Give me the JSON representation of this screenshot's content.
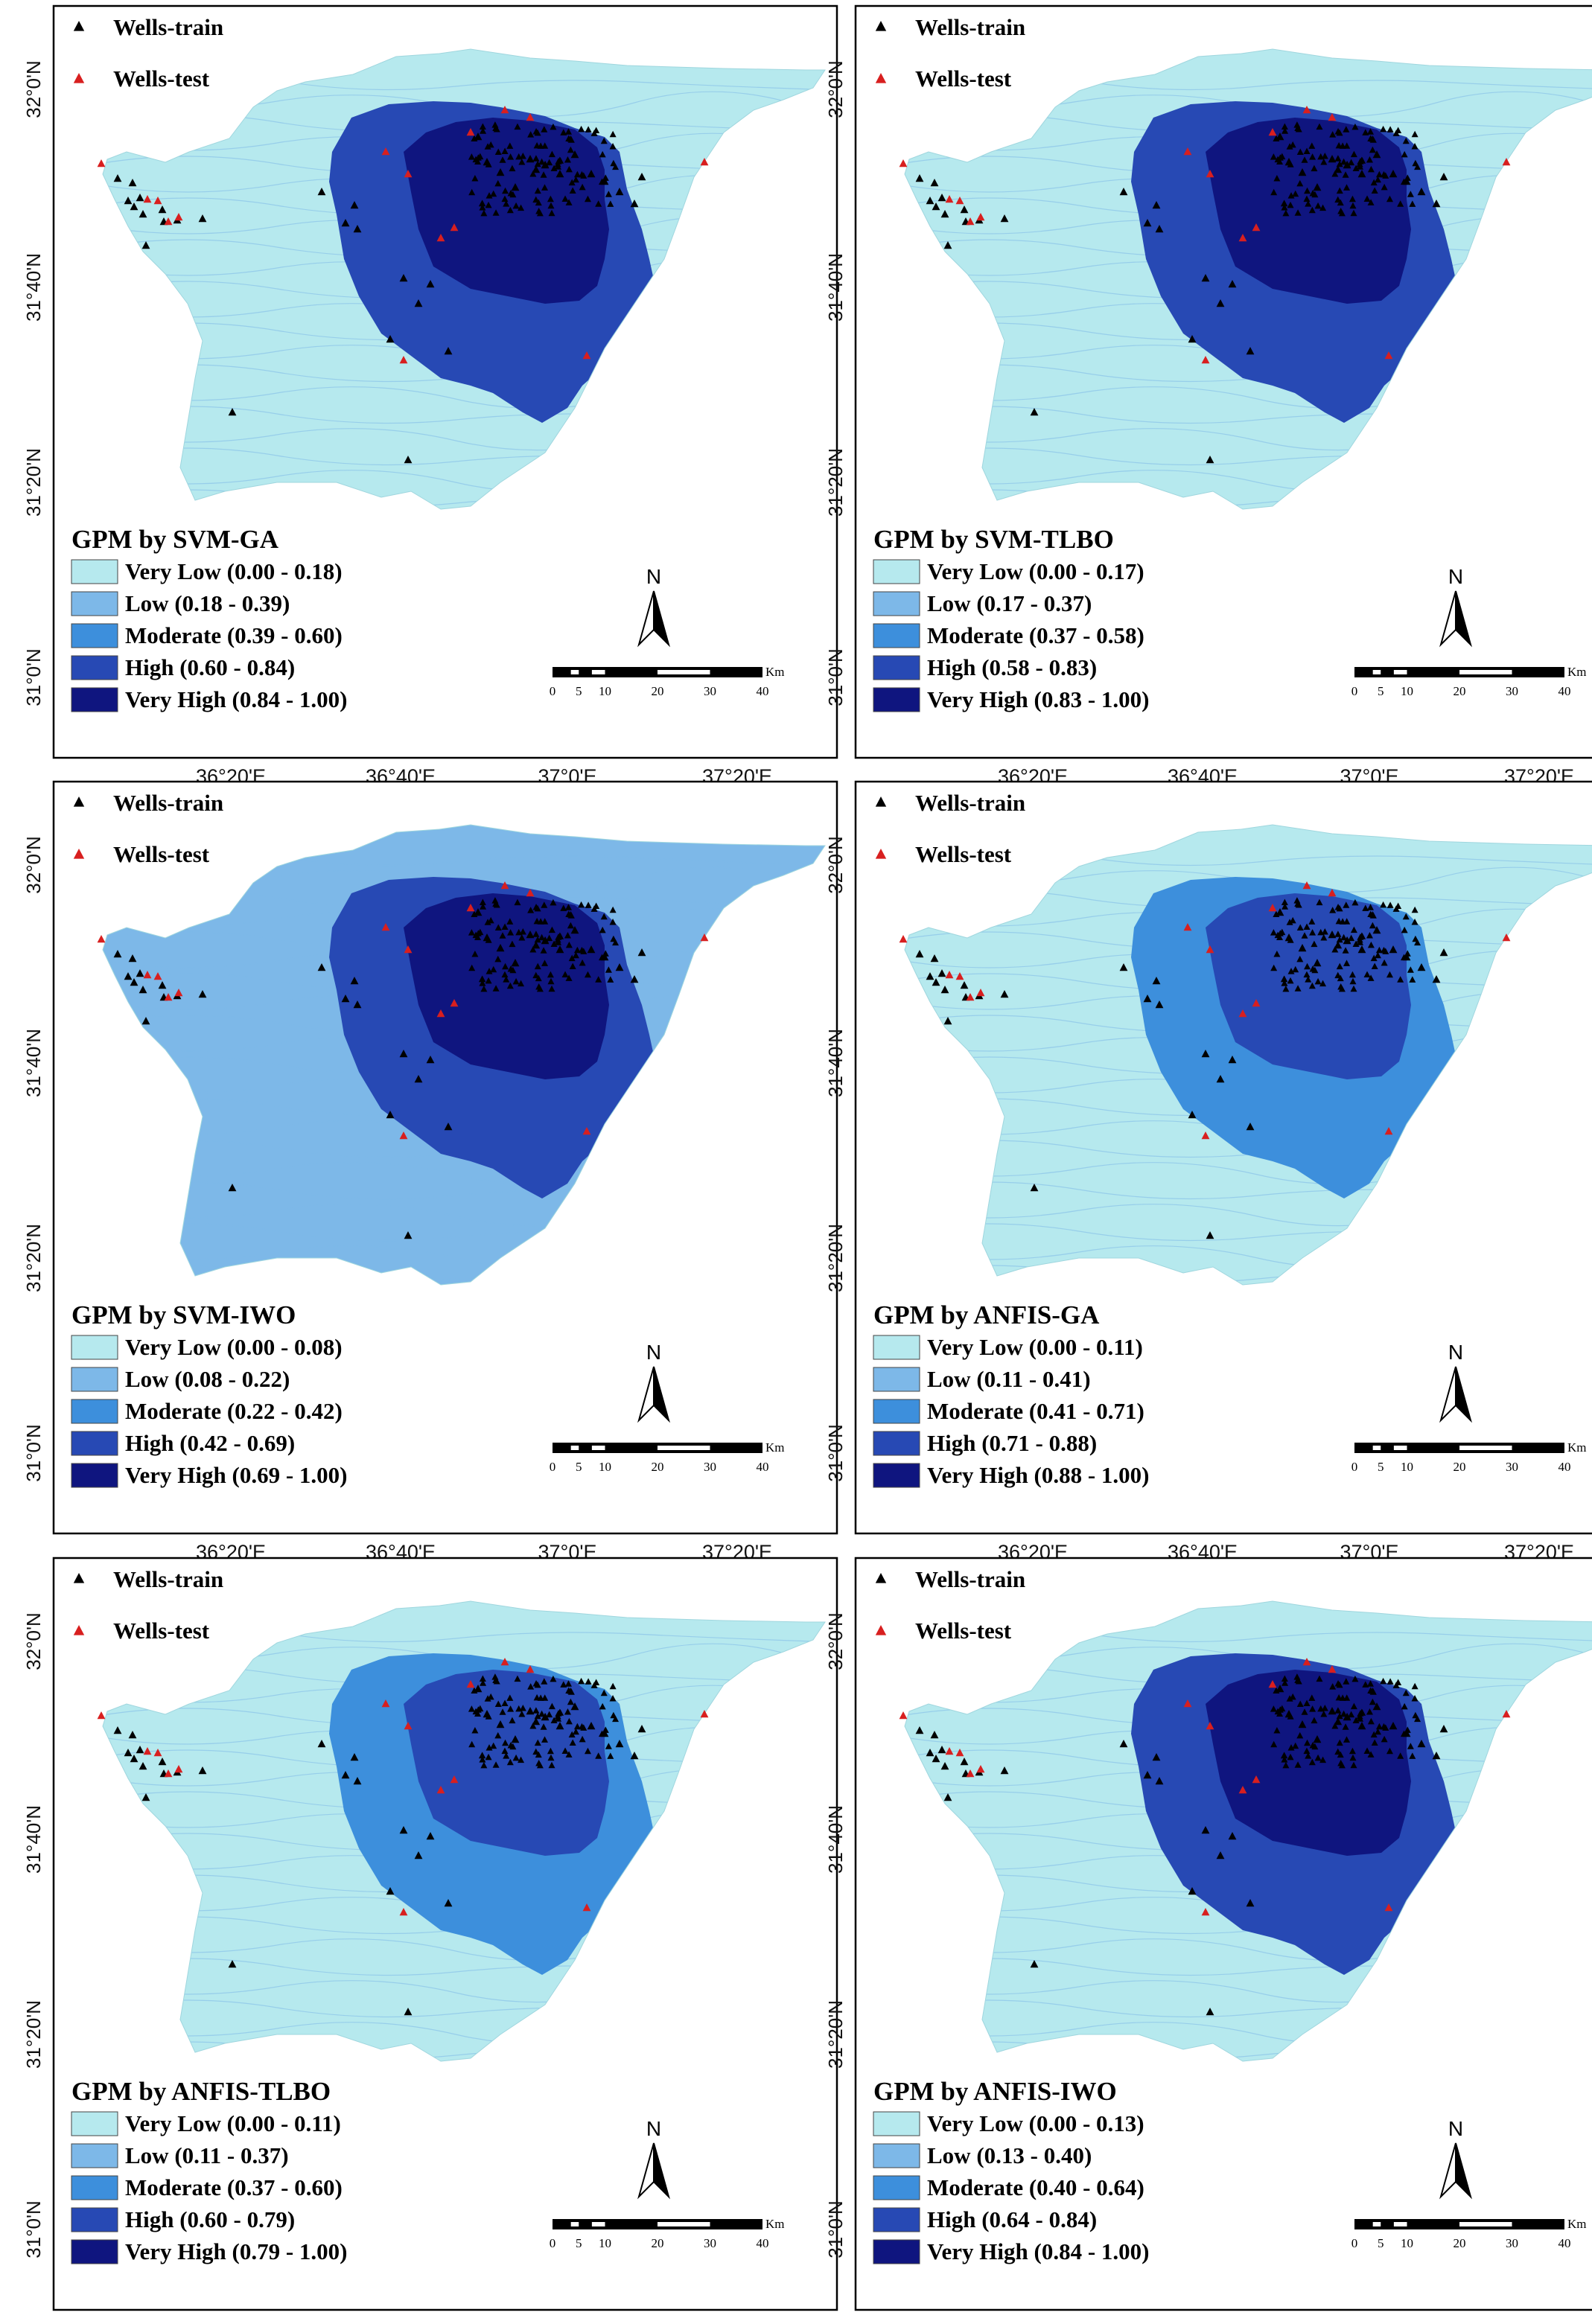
{
  "colors": {
    "very_low": "#b6e9ee",
    "low": "#7db8e8",
    "moderate": "#3d8fdc",
    "high": "#2749b4",
    "very_high": "#0f157f",
    "train_marker": "#000000",
    "test_marker": "#d81f1f"
  },
  "common": {
    "wells_train": "Wells-train",
    "wells_test": "Wells-test",
    "north": "N",
    "scale_unit": "Km",
    "scale_ticks": [
      "0",
      "5",
      "10",
      "20",
      "30",
      "40"
    ],
    "lat_labels": [
      "32°0'N",
      "31°40'N",
      "31°20'N",
      "31°0'N"
    ],
    "lon_labels": [
      "36°20'E",
      "36°40'E",
      "37°0'E",
      "37°20'E"
    ]
  },
  "panels": [
    {
      "title": "GPM by SVM-GA",
      "classes": [
        "Very Low (0.00 - 0.18)",
        "Low (0.18 - 0.39)",
        "Moderate (0.39 - 0.60)",
        "High (0.60 - 0.84)",
        "Very High (0.84 - 1.00)"
      ],
      "base_class": "very_low",
      "outer_class": "high",
      "inner_class": "very_high"
    },
    {
      "title": "GPM by SVM-TLBO",
      "classes": [
        "Very Low (0.00 - 0.17)",
        "Low (0.17 - 0.37)",
        "Moderate (0.37 - 0.58)",
        "High (0.58 - 0.83)",
        "Very High (0.83 - 1.00)"
      ],
      "base_class": "very_low",
      "outer_class": "high",
      "inner_class": "very_high"
    },
    {
      "title": "GPM by SVM-IWO",
      "classes": [
        "Very Low (0.00 - 0.08)",
        "Low (0.08 - 0.22)",
        "Moderate (0.22 - 0.42)",
        "High (0.42 - 0.69)",
        "Very High (0.69 - 1.00)"
      ],
      "base_class": "low",
      "outer_class": "high",
      "inner_class": "very_high"
    },
    {
      "title": "GPM by ANFIS-GA",
      "classes": [
        "Very Low (0.00 - 0.11)",
        "Low (0.11 - 0.41)",
        "Moderate (0.41 - 0.71)",
        "High (0.71 - 0.88)",
        "Very High (0.88 - 1.00)"
      ],
      "base_class": "very_low",
      "outer_class": "moderate",
      "inner_class": "high"
    },
    {
      "title": "GPM by ANFIS-TLBO",
      "classes": [
        "Very Low (0.00 - 0.11)",
        "Low (0.11 - 0.37)",
        "Moderate (0.37 - 0.60)",
        "High (0.60 - 0.79)",
        "Very High (0.79 - 1.00)"
      ],
      "base_class": "very_low",
      "outer_class": "moderate",
      "inner_class": "high"
    },
    {
      "title": "GPM by ANFIS-IWO",
      "classes": [
        "Very Low (0.00 - 0.13)",
        "Low (0.13 - 0.40)",
        "Moderate (0.40 - 0.64)",
        "High (0.64 - 0.84)",
        "Very High (0.84 - 1.00)"
      ],
      "base_class": "very_low",
      "outer_class": "high",
      "inner_class": "very_high"
    }
  ]
}
